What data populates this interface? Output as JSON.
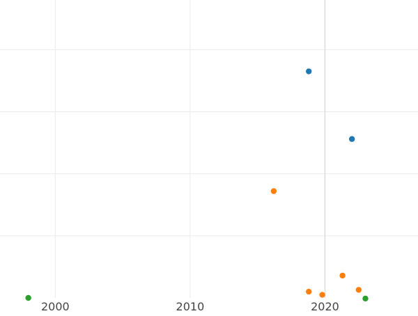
{
  "chart_data": {
    "type": "scatter",
    "title": "",
    "xlabel": "",
    "ylabel": "",
    "grid": true,
    "x_ticks": [
      2000,
      2010,
      2020
    ],
    "x_tick_labels": [
      "2000",
      "2010",
      "2020"
    ],
    "xlim": [
      1995.9,
      2026.9
    ],
    "ylim": [
      0,
      4.8
    ],
    "y_gridlines": [
      0,
      1,
      2,
      3,
      4
    ],
    "reference_line_x": 2020,
    "series": [
      {
        "name": "blue",
        "color": "#1f77b4",
        "points": [
          {
            "x": 2018.8,
            "y": 3.65
          },
          {
            "x": 2022.0,
            "y": 2.56
          }
        ]
      },
      {
        "name": "orange",
        "color": "#ff7f0e",
        "points": [
          {
            "x": 2016.2,
            "y": 1.72
          },
          {
            "x": 2021.3,
            "y": 0.36
          },
          {
            "x": 2022.5,
            "y": 0.13
          },
          {
            "x": 2018.8,
            "y": 0.1
          },
          {
            "x": 2019.8,
            "y": 0.05
          }
        ]
      },
      {
        "name": "green",
        "color": "#2ca02c",
        "points": [
          {
            "x": 1998.0,
            "y": 0.0
          },
          {
            "x": 2023.0,
            "y": -0.01
          }
        ]
      }
    ]
  }
}
